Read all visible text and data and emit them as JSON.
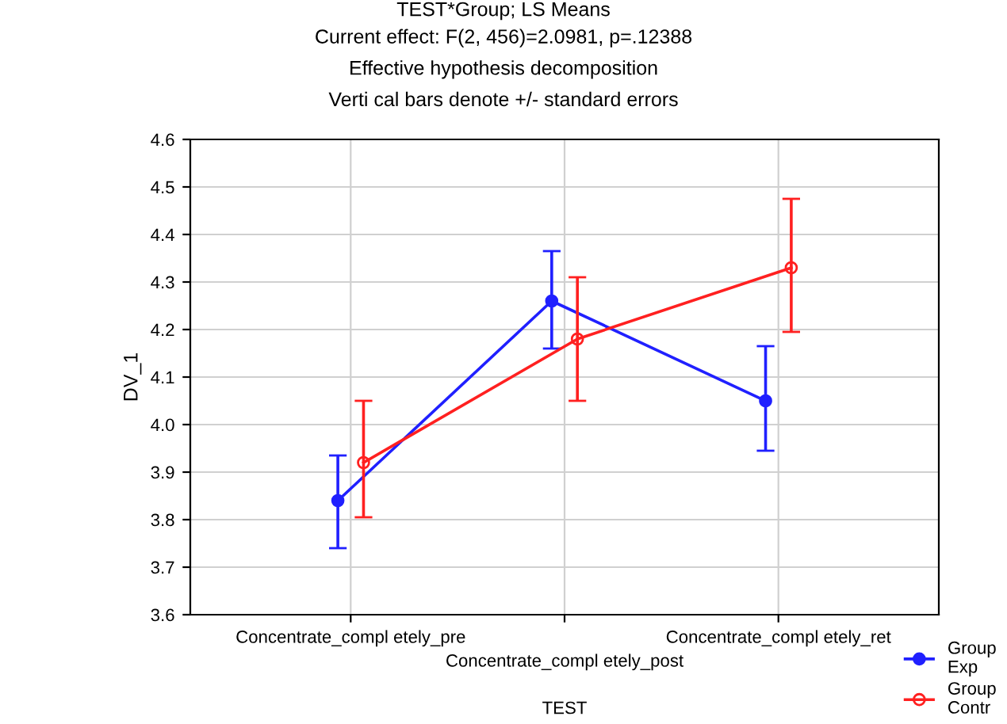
{
  "chart_data": {
    "type": "line",
    "title": "TEST*Group; LS Means",
    "subtitle": "Current effect: F(2, 456)=2.0981, p=.12388\nEffective hypothesis decomposition\nVerti cal bars denote +/- standard errors",
    "xlabel": "TEST",
    "ylabel": "DV_1",
    "categories": [
      "Concentrate_compl etely_pre",
      "Concentrate_compl etely_post",
      "Concentrate_compl etely_ret"
    ],
    "series": [
      {
        "name": "Group\nExp",
        "color": "#2020ff",
        "values": [
          3.84,
          4.26,
          4.05
        ],
        "errors": [
          [
            3.74,
            3.935
          ],
          [
            4.16,
            4.365
          ],
          [
            3.945,
            4.165
          ]
        ]
      },
      {
        "name": "Group\nContr",
        "color": "#ff2020",
        "values": [
          3.92,
          4.18,
          4.33
        ],
        "errors": [
          [
            3.805,
            4.05
          ],
          [
            4.05,
            4.31
          ],
          [
            4.195,
            4.475
          ]
        ]
      }
    ],
    "ylim": [
      3.6,
      4.6
    ],
    "yticks": [
      3.6,
      3.7,
      3.8,
      3.9,
      {
        "value": 4.0,
        "label": "4.0"
      },
      4.1,
      4.2,
      4.3,
      4.4,
      4.5,
      4.6
    ],
    "grid": true,
    "legend": "bottom right",
    "marker": "circle",
    "line_style": "solid"
  }
}
